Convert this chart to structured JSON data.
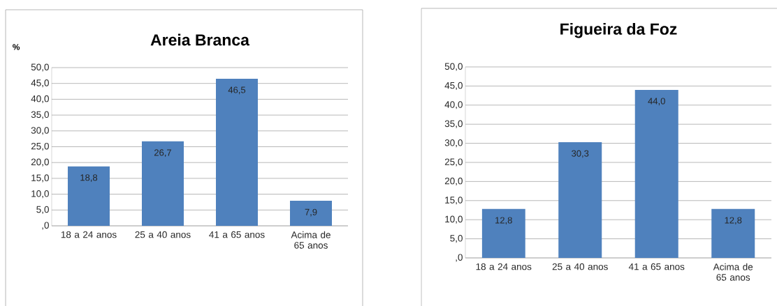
{
  "chart_data": [
    {
      "type": "bar",
      "title": "Areia Branca",
      "ylabel": "%",
      "categories": [
        "18 a 24 anos",
        "25 a 40 anos",
        "41 a 65 anos",
        "Acima de 65 anos"
      ],
      "values": [
        18.8,
        26.7,
        46.5,
        7.9
      ],
      "value_labels": [
        "18,8",
        "26,7",
        "46,5",
        "7,9"
      ],
      "color": "#4f81bd",
      "ylim": [
        0,
        50
      ],
      "yticks": [
        {
          "value": 0,
          "label": ",0"
        },
        {
          "value": 5,
          "label": "5,0"
        },
        {
          "value": 10,
          "label": "10,0"
        },
        {
          "value": 15,
          "label": "15,0"
        },
        {
          "value": 20,
          "label": "20,0"
        },
        {
          "value": 25,
          "label": "25,0"
        },
        {
          "value": 30,
          "label": "30,0"
        },
        {
          "value": 35,
          "label": "35,0"
        },
        {
          "value": 40,
          "label": "40,0"
        },
        {
          "value": 45,
          "label": "45,0"
        },
        {
          "value": 50,
          "label": "50,0"
        }
      ],
      "grid": "y"
    },
    {
      "type": "bar",
      "title": "Figueira da Foz",
      "categories": [
        "18 a 24 anos",
        "25 a 40 anos",
        "41 a 65 anos",
        "Acima de 65 anos"
      ],
      "values": [
        12.8,
        30.3,
        44.0,
        12.8
      ],
      "value_labels": [
        "12,8",
        "30,3",
        "44,0",
        "12,8"
      ],
      "color": "#4f81bd",
      "ylim": [
        0,
        50
      ],
      "yticks": [
        {
          "value": 0,
          "label": ",0"
        },
        {
          "value": 5,
          "label": "5,0"
        },
        {
          "value": 10,
          "label": "10,0"
        },
        {
          "value": 15,
          "label": "15,0"
        },
        {
          "value": 20,
          "label": "20,0"
        },
        {
          "value": 25,
          "label": "25,0"
        },
        {
          "value": 30,
          "label": "30,0"
        },
        {
          "value": 35,
          "label": "35,0"
        },
        {
          "value": 40,
          "label": "40,0"
        },
        {
          "value": 45,
          "label": "45,0"
        },
        {
          "value": 50,
          "label": "50,0"
        }
      ],
      "grid": "y"
    }
  ]
}
